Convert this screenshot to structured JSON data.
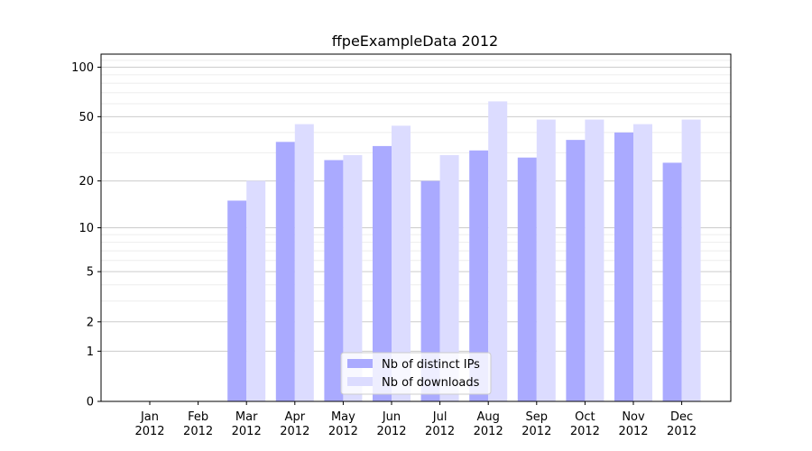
{
  "chart_data": {
    "type": "bar",
    "title": "ffpeExampleData 2012",
    "xlabel": "",
    "ylabel": "",
    "yscale": "log(1+y)",
    "ylim": [
      0,
      120
    ],
    "yticks": [
      0,
      1,
      2,
      5,
      10,
      20,
      50,
      100
    ],
    "categories": [
      [
        "Jan",
        "2012"
      ],
      [
        "Feb",
        "2012"
      ],
      [
        "Mar",
        "2012"
      ],
      [
        "Apr",
        "2012"
      ],
      [
        "May",
        "2012"
      ],
      [
        "Jun",
        "2012"
      ],
      [
        "Jul",
        "2012"
      ],
      [
        "Aug",
        "2012"
      ],
      [
        "Sep",
        "2012"
      ],
      [
        "Oct",
        "2012"
      ],
      [
        "Nov",
        "2012"
      ],
      [
        "Dec",
        "2012"
      ]
    ],
    "series": [
      {
        "name": "Nb of distinct IPs",
        "color": "#aaaaff",
        "values": [
          0,
          0,
          15,
          35,
          27,
          33,
          20,
          31,
          28,
          36,
          40,
          26
        ]
      },
      {
        "name": "Nb of downloads",
        "color": "#dcdcff",
        "values": [
          0,
          0,
          20,
          45,
          29,
          44,
          29,
          62,
          48,
          48,
          45,
          48
        ]
      }
    ],
    "grid": true,
    "legend_position": "lower-center"
  }
}
